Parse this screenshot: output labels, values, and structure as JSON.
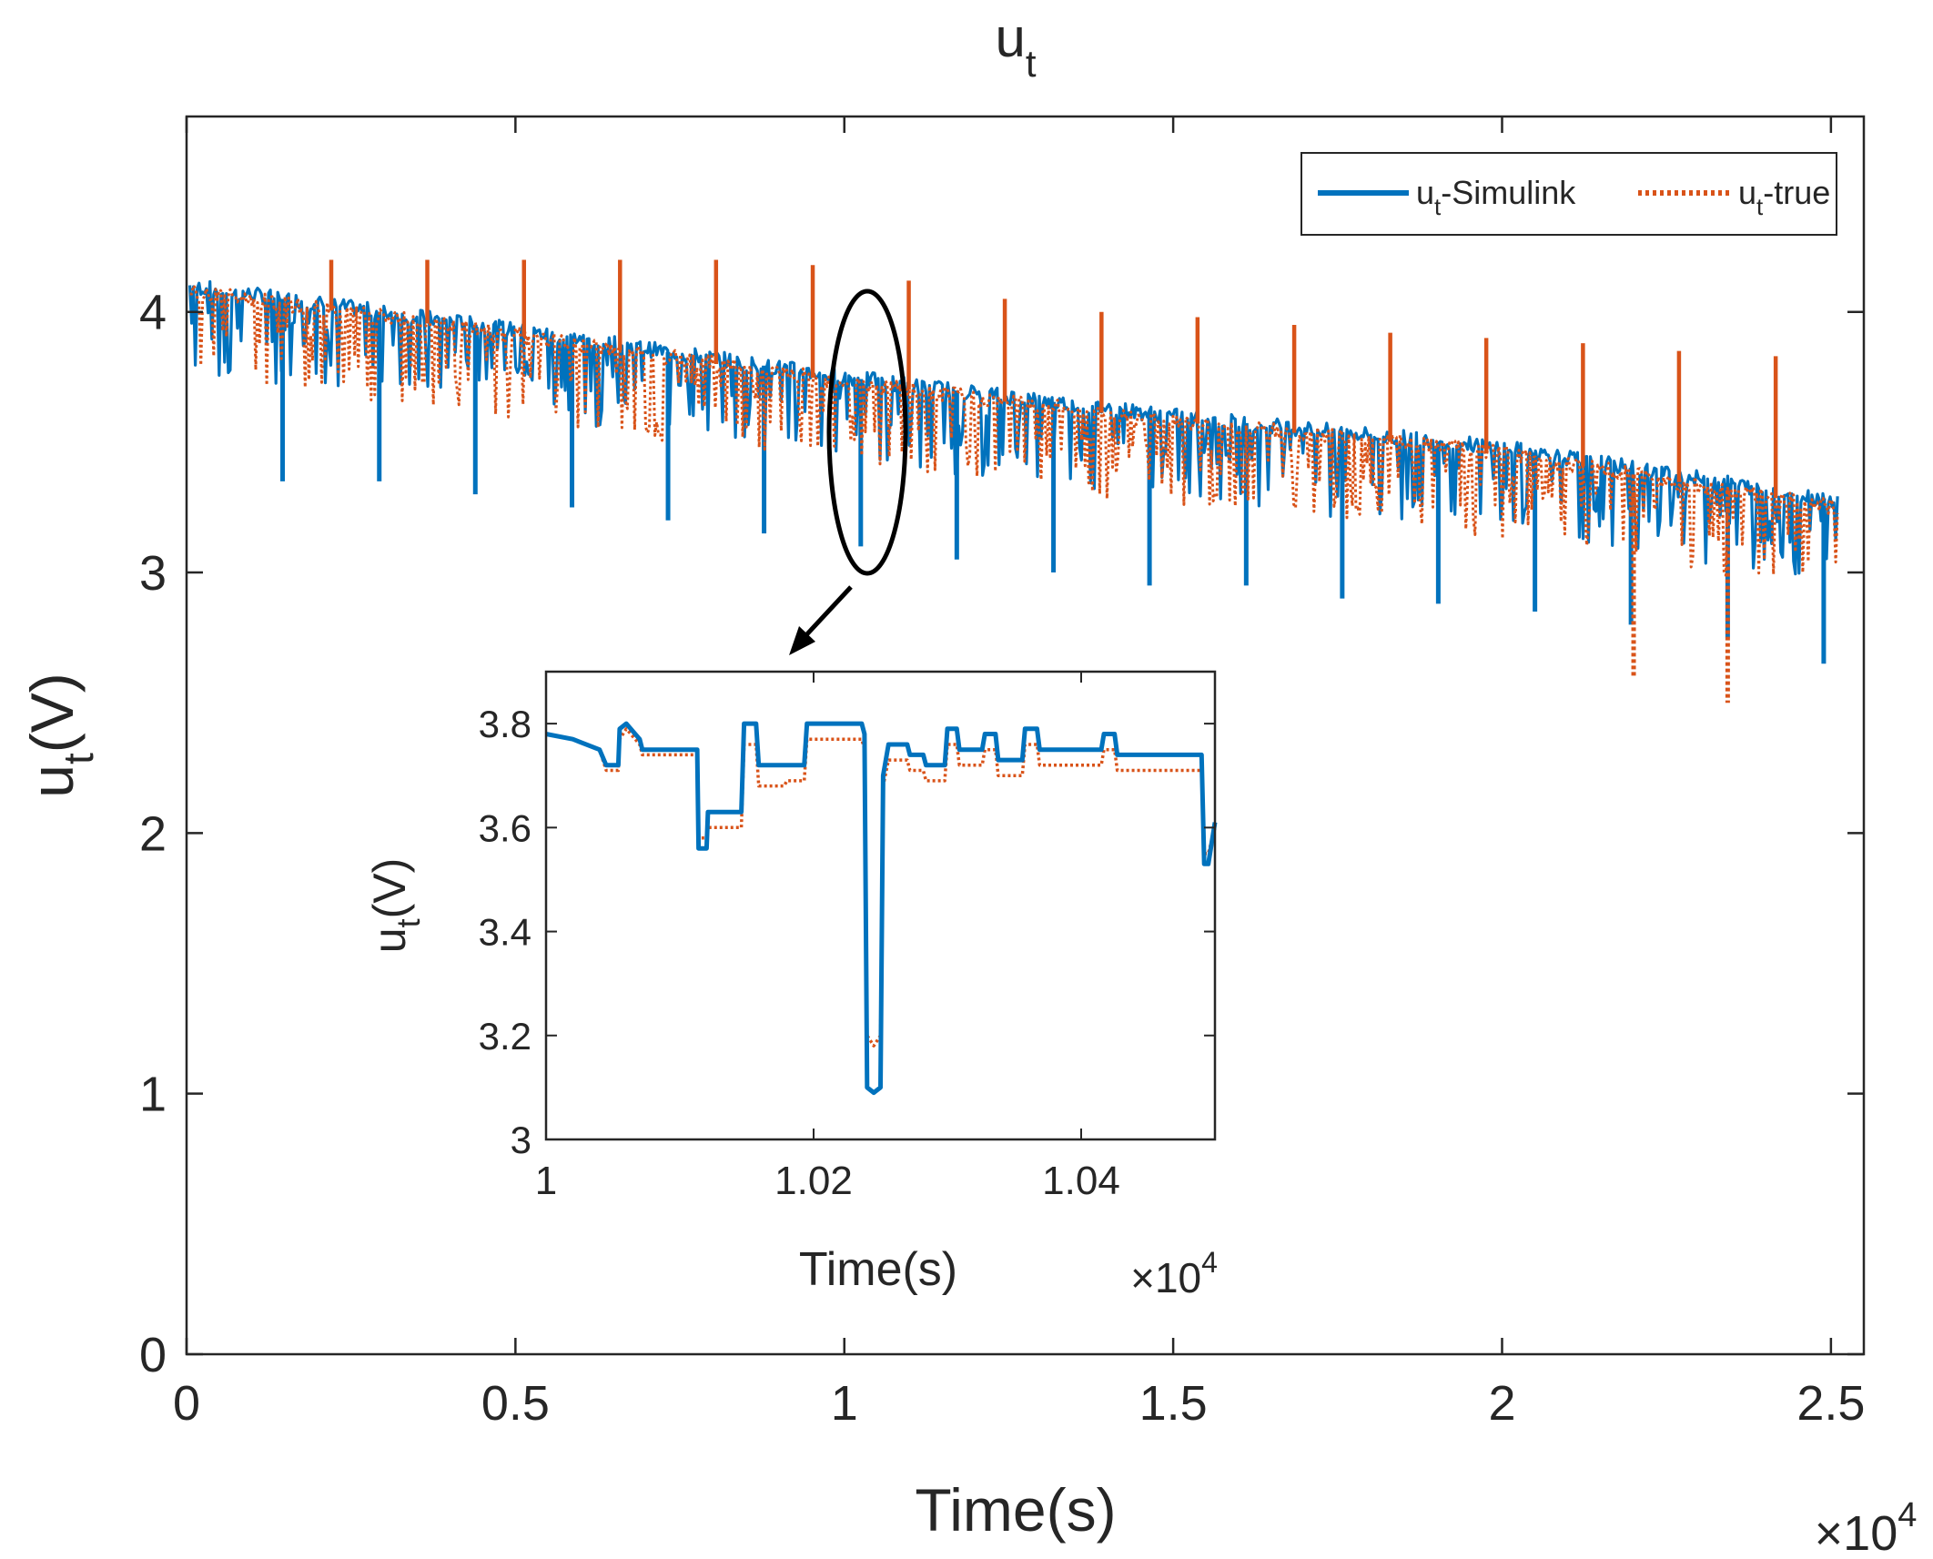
{
  "chart_data": [
    {
      "type": "line",
      "title": {
        "base": "u",
        "sub": "t"
      },
      "xlabel": "Time(s)",
      "ylabel": {
        "base": "u",
        "sub": "t",
        "suffix": "(V)"
      },
      "x_multiplier": {
        "times": "×10",
        "exp": "4"
      },
      "xlim": [
        0,
        2.55
      ],
      "ylim": [
        0,
        4.75
      ],
      "xticks": [
        0,
        0.5,
        1,
        1.5,
        2,
        2.5
      ],
      "xtick_labels": [
        "0",
        "0.5",
        "1",
        "1.5",
        "2",
        "2.5"
      ],
      "yticks": [
        0,
        1,
        2,
        3,
        4
      ],
      "ytick_labels": [
        "0",
        "1",
        "2",
        "3",
        "4"
      ],
      "legend": {
        "position": "top-right",
        "entries": [
          {
            "base": "u",
            "sub": "t",
            "suffix": "-Simulink",
            "style": "solid"
          },
          {
            "base": "u",
            "sub": "t",
            "suffix": "-true",
            "style": "dotted"
          }
        ]
      },
      "series": [
        {
          "name": "u_t-Simulink",
          "color": "#0072BD",
          "baseline": {
            "x": [
              0,
              0.5,
              1,
              1.5,
              2,
              2.5
            ],
            "y": [
              4.1,
              3.93,
              3.75,
              3.6,
              3.48,
              3.28
            ]
          },
          "dips": {
            "x": [
              0.146,
              0.293,
              0.439,
              0.586,
              0.732,
              0.878,
              1.025,
              1.171,
              1.318,
              1.464,
              1.611,
              1.757,
              1.903,
              2.05,
              2.196,
              2.343,
              2.489
            ],
            "y": [
              3.35,
              3.35,
              3.3,
              3.25,
              3.2,
              3.15,
              3.1,
              3.05,
              3.0,
              2.95,
              2.95,
              2.9,
              2.88,
              2.85,
              2.8,
              2.75,
              2.65
            ]
          }
        },
        {
          "name": "u_t-true",
          "color": "#D95319",
          "baseline": {
            "x": [
              0,
              0.5,
              1,
              1.5,
              2,
              2.5
            ],
            "y": [
              4.08,
              3.91,
              3.73,
              3.58,
              3.46,
              3.25
            ]
          },
          "spikes": {
            "x": [
              0.22,
              0.366,
              0.513,
              0.659,
              0.805,
              0.952,
              1.098,
              1.244,
              1.391,
              1.537,
              1.684,
              1.83,
              1.976,
              2.123,
              2.269,
              2.416
            ],
            "y": [
              4.2,
              4.2,
              4.2,
              4.2,
              4.2,
              4.18,
              4.12,
              4.05,
              4.0,
              3.98,
              3.95,
              3.92,
              3.9,
              3.88,
              3.85,
              3.83
            ]
          },
          "dips": {
            "x": [
              2.2,
              2.343
            ],
            "y": [
              2.6,
              2.5
            ]
          }
        }
      ],
      "annotation": {
        "type": "ellipse",
        "x": 1.03,
        "y": 3.72,
        "points_to": "inset"
      }
    },
    {
      "type": "line",
      "role": "inset",
      "xlabel": "Time(s)",
      "ylabel": {
        "base": "u",
        "sub": "t",
        "suffix": "(V)"
      },
      "x_multiplier": {
        "times": "×10",
        "exp": "4"
      },
      "xlim": [
        1.0,
        1.05
      ],
      "ylim": [
        3.0,
        3.9
      ],
      "xticks": [
        1.0,
        1.02,
        1.04
      ],
      "xtick_labels": [
        "1",
        "1.02",
        "1.04"
      ],
      "yticks": [
        3.0,
        3.2,
        3.4,
        3.6,
        3.8
      ],
      "ytick_labels": [
        "3",
        "3.2",
        "3.4",
        "3.6",
        "3.8"
      ],
      "series": [
        {
          "name": "u_t-Simulink",
          "color": "#0072BD",
          "x": [
            1.0,
            1.002,
            1.004,
            1.0045,
            1.0054,
            1.0055,
            1.006,
            1.007,
            1.0072,
            1.0073,
            1.0085,
            1.0113,
            1.0114,
            1.012,
            1.0121,
            1.0146,
            1.0148,
            1.0157,
            1.0159,
            1.0178,
            1.018,
            1.0193,
            1.0195,
            1.0225,
            1.0236,
            1.0238,
            1.024,
            1.0245,
            1.025,
            1.0252,
            1.0256,
            1.027,
            1.0272,
            1.0282,
            1.0284,
            1.0298,
            1.03,
            1.0307,
            1.0309,
            1.0326,
            1.0328,
            1.0336,
            1.0338,
            1.0356,
            1.0358,
            1.0367,
            1.0369,
            1.0415,
            1.0417,
            1.0425,
            1.0427,
            1.049,
            1.0492,
            1.0495,
            1.05
          ],
          "y": [
            3.78,
            3.77,
            3.75,
            3.72,
            3.72,
            3.79,
            3.8,
            3.77,
            3.75,
            3.75,
            3.75,
            3.75,
            3.56,
            3.56,
            3.63,
            3.63,
            3.8,
            3.8,
            3.72,
            3.72,
            3.72,
            3.72,
            3.8,
            3.8,
            3.8,
            3.78,
            3.1,
            3.09,
            3.1,
            3.7,
            3.76,
            3.76,
            3.74,
            3.74,
            3.72,
            3.72,
            3.79,
            3.79,
            3.75,
            3.75,
            3.78,
            3.78,
            3.73,
            3.73,
            3.79,
            3.79,
            3.75,
            3.75,
            3.78,
            3.78,
            3.74,
            3.74,
            3.53,
            3.53,
            3.61
          ]
        },
        {
          "name": "u_t-true",
          "color": "#D95319",
          "x": [
            1.0,
            1.002,
            1.004,
            1.0045,
            1.0054,
            1.0055,
            1.006,
            1.007,
            1.0072,
            1.0073,
            1.0085,
            1.0113,
            1.0114,
            1.012,
            1.0121,
            1.0146,
            1.0148,
            1.0157,
            1.0159,
            1.0178,
            1.018,
            1.0193,
            1.0195,
            1.0225,
            1.0236,
            1.0238,
            1.024,
            1.0245,
            1.025,
            1.0252,
            1.0256,
            1.027,
            1.0272,
            1.0282,
            1.0284,
            1.0298,
            1.03,
            1.0307,
            1.0309,
            1.0326,
            1.0328,
            1.0336,
            1.0338,
            1.0356,
            1.0358,
            1.0367,
            1.0369,
            1.0415,
            1.0417,
            1.0425,
            1.0427,
            1.049,
            1.0492,
            1.0495,
            1.05
          ],
          "y": [
            3.78,
            3.77,
            3.75,
            3.71,
            3.71,
            3.77,
            3.79,
            3.76,
            3.74,
            3.74,
            3.74,
            3.74,
            3.58,
            3.58,
            3.6,
            3.6,
            3.76,
            3.76,
            3.68,
            3.68,
            3.69,
            3.69,
            3.77,
            3.77,
            3.77,
            3.75,
            3.2,
            3.18,
            3.2,
            3.68,
            3.73,
            3.73,
            3.71,
            3.71,
            3.69,
            3.69,
            3.76,
            3.76,
            3.72,
            3.72,
            3.75,
            3.75,
            3.7,
            3.7,
            3.76,
            3.76,
            3.72,
            3.72,
            3.75,
            3.75,
            3.71,
            3.71,
            3.55,
            3.55,
            3.6
          ]
        }
      ]
    }
  ]
}
